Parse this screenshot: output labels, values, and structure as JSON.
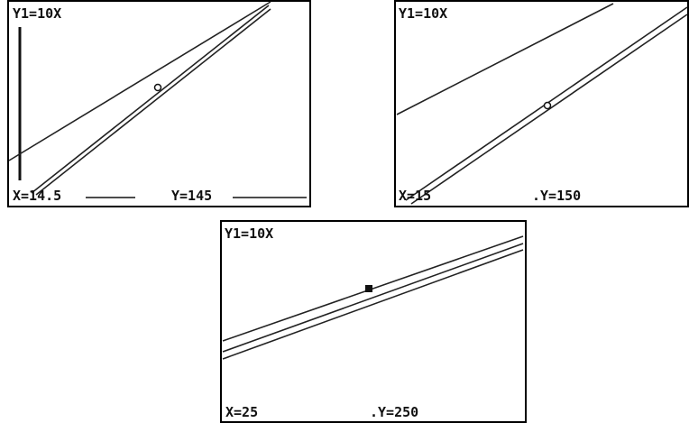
{
  "screens": [
    {
      "function_label": "Y1=10X",
      "x_label": "X=14.5",
      "y_label": "Y=145"
    },
    {
      "function_label": "Y1=10X",
      "x_label": "X=15",
      "y_label": ".Y=150"
    },
    {
      "function_label": "Y1=10X",
      "x_label": "X=25",
      "y_label": ".Y=250"
    }
  ]
}
